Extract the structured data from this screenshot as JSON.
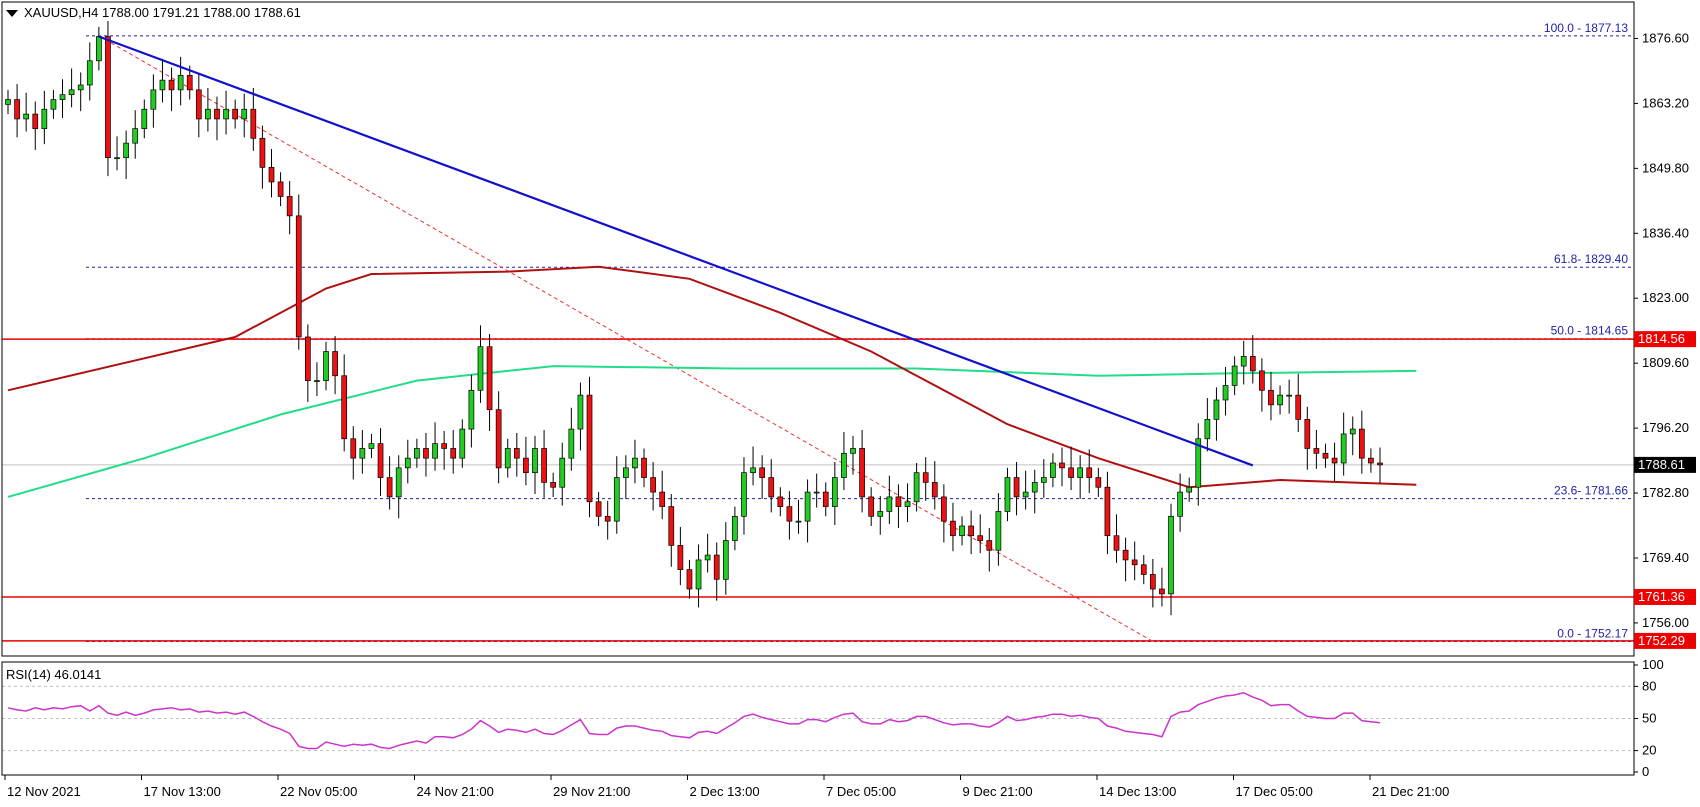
{
  "header": {
    "symbol_line": "XAUUSD,H4  1788.00 1791.21 1788.00 1788.61",
    "rsi_label": "RSI(14) 46.0141"
  },
  "colors": {
    "up_candle": "#22cc22",
    "down_candle": "#ee1111",
    "trendline": "#1111cc",
    "ma_red": "#b01010",
    "ma_green": "#22dd88",
    "hline": "#ee0000",
    "fib": "#2222aa",
    "rsi": "#cc33cc",
    "fib_diag": "#ee3333"
  },
  "chart_data": [
    {
      "type": "candlestick",
      "symbol": "XAUUSD",
      "timeframe": "H4",
      "ylim": [
        1750.0,
        1880.0
      ],
      "y_ticks": [
        "1876.60",
        "1863.20",
        "1849.80",
        "1836.40",
        "1823.00",
        "1809.60",
        "1796.20",
        "1782.80",
        "1769.40",
        "1756.00"
      ],
      "x_ticks": [
        "12 Nov 2021",
        "17 Nov 13:00",
        "22 Nov 05:00",
        "24 Nov 21:00",
        "29 Nov 21:00",
        "2 Dec 13:00",
        "7 Dec 05:00",
        "9 Dec 21:00",
        "14 Dec 13:00",
        "17 Dec 05:00",
        "21 Dec 21:00"
      ],
      "current_price": "1788.61",
      "price_tags": [
        {
          "label": "1814.56",
          "value": 1814.56
        },
        {
          "label": "1761.36",
          "value": 1761.36
        },
        {
          "label": "1752.29",
          "value": 1752.29
        }
      ],
      "fib_levels": [
        {
          "label": "100.0 - 1877.13",
          "value": 1877.13
        },
        {
          "label": "61.8- 1829.40",
          "value": 1829.4
        },
        {
          "label": "50.0 - 1814.65",
          "value": 1814.65
        },
        {
          "label": "23.6- 1781.66",
          "value": 1781.66
        },
        {
          "label": "0.0 - 1752.17",
          "value": 1752.17
        }
      ],
      "closes": [
        1864,
        1860,
        1861,
        1858,
        1862,
        1864,
        1865,
        1866,
        1867,
        1872,
        1877,
        1852,
        1852,
        1855,
        1858,
        1862,
        1866,
        1868,
        1866,
        1869,
        1866,
        1860,
        1862,
        1860,
        1862,
        1860,
        1862,
        1856,
        1850,
        1847,
        1844,
        1840,
        1815,
        1806,
        1806,
        1812,
        1807,
        1794,
        1790,
        1792,
        1793,
        1786,
        1782,
        1788,
        1790,
        1792,
        1790,
        1793,
        1792,
        1790,
        1796,
        1804,
        1813,
        1800,
        1788,
        1792,
        1790,
        1787,
        1792,
        1785,
        1784,
        1790,
        1796,
        1803,
        1781,
        1778,
        1777,
        1786,
        1788,
        1790,
        1786,
        1783,
        1780,
        1772,
        1767,
        1763,
        1769,
        1770,
        1765,
        1773,
        1778,
        1787,
        1788,
        1786,
        1782,
        1780,
        1777,
        1777,
        1783,
        1783,
        1780,
        1786,
        1791,
        1792,
        1782,
        1778,
        1779,
        1782,
        1780,
        1781,
        1787,
        1785,
        1782,
        1777,
        1774,
        1776,
        1774,
        1773,
        1771,
        1779,
        1786,
        1782,
        1783,
        1785,
        1786,
        1789,
        1788,
        1786,
        1788,
        1786,
        1784,
        1774,
        1771,
        1769,
        1768,
        1766,
        1763,
        1762,
        1778,
        1783,
        1784,
        1794,
        1798,
        1802,
        1805,
        1809,
        1811,
        1808,
        1804,
        1801,
        1803,
        1803,
        1798,
        1792,
        1791,
        1790,
        1789,
        1795,
        1796,
        1790,
        1789,
        1788.61
      ],
      "ma_red": [
        {
          "x": 0,
          "y": 1804.0
        },
        {
          "x": 25,
          "y": 1815.0
        },
        {
          "x": 35,
          "y": 1825.0
        },
        {
          "x": 40,
          "y": 1828.0
        },
        {
          "x": 55,
          "y": 1828.5
        },
        {
          "x": 65,
          "y": 1829.5
        },
        {
          "x": 75,
          "y": 1827.0
        },
        {
          "x": 85,
          "y": 1820.0
        },
        {
          "x": 95,
          "y": 1812.0
        },
        {
          "x": 110,
          "y": 1797.0
        },
        {
          "x": 120,
          "y": 1790.0
        },
        {
          "x": 130,
          "y": 1784.0
        },
        {
          "x": 140,
          "y": 1785.5
        },
        {
          "x": 155,
          "y": 1784.5
        }
      ],
      "ma_green": [
        {
          "x": 0,
          "y": 1782.0
        },
        {
          "x": 15,
          "y": 1790.0
        },
        {
          "x": 30,
          "y": 1799.0
        },
        {
          "x": 45,
          "y": 1806.0
        },
        {
          "x": 60,
          "y": 1809.0
        },
        {
          "x": 80,
          "y": 1808.5
        },
        {
          "x": 100,
          "y": 1808.5
        },
        {
          "x": 120,
          "y": 1807.0
        },
        {
          "x": 135,
          "y": 1807.5
        },
        {
          "x": 155,
          "y": 1808.0
        }
      ],
      "trendline": [
        {
          "x": 10,
          "y": 1877.0
        },
        {
          "x": 137,
          "y": 1788.5
        }
      ],
      "fib_diagonal": [
        {
          "x": 10,
          "y": 1877.13
        },
        {
          "x": 126,
          "y": 1752.17
        }
      ]
    },
    {
      "type": "line",
      "name": "RSI(14)",
      "ylim": [
        0,
        100
      ],
      "y_ticks": [
        "100",
        "80",
        "50",
        "20",
        "0"
      ],
      "levels": [
        80,
        50,
        20
      ],
      "values": [
        60,
        58,
        57,
        60,
        58,
        60,
        59,
        61,
        62,
        57,
        62,
        55,
        53,
        56,
        53,
        55,
        58,
        59,
        60,
        58,
        59,
        56,
        57,
        55,
        56,
        54,
        56,
        52,
        47,
        43,
        40,
        36,
        24,
        22,
        22,
        28,
        26,
        24,
        26,
        25,
        26,
        23,
        22,
        25,
        27,
        29,
        27,
        33,
        33,
        32,
        35,
        40,
        48,
        43,
        37,
        40,
        39,
        37,
        40,
        36,
        35,
        39,
        44,
        49,
        36,
        35,
        35,
        41,
        43,
        43,
        41,
        39,
        38,
        34,
        33,
        32,
        37,
        38,
        36,
        41,
        46,
        52,
        54,
        51,
        49,
        47,
        45,
        45,
        49,
        49,
        47,
        51,
        54,
        55,
        47,
        45,
        45,
        49,
        47,
        48,
        52,
        52,
        49,
        46,
        44,
        45,
        45,
        43,
        42,
        46,
        52,
        48,
        49,
        51,
        52,
        54,
        54,
        52,
        53,
        51,
        50,
        43,
        41,
        38,
        37,
        36,
        35,
        33,
        52,
        56,
        57,
        63,
        66,
        69,
        71,
        72,
        74,
        70,
        67,
        62,
        63,
        63,
        57,
        52,
        51,
        50,
        50,
        55,
        55,
        48,
        47,
        46
      ]
    }
  ]
}
